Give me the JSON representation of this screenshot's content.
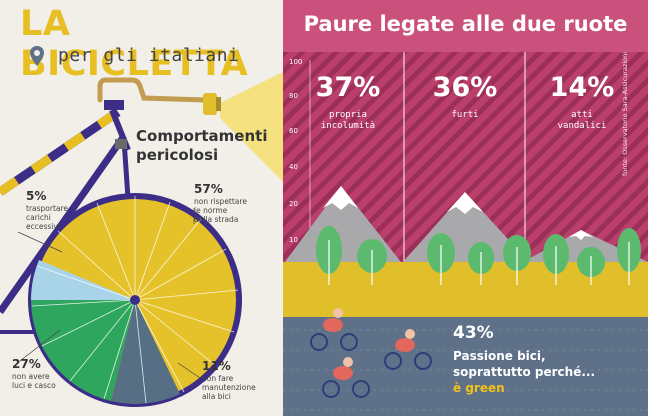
{
  "left": {
    "title": "LA BICICLETTA",
    "subtitle": "per gli italiani",
    "behaviours_title_line1": "Comportamenti",
    "behaviours_title_line2": "pericolosi",
    "segments": [
      {
        "pct": "5%",
        "label_lines": [
          "trasportare",
          "carichi",
          "eccessivi"
        ],
        "value": 5,
        "color": "#a9d3e8"
      },
      {
        "pct": "57%",
        "label_lines": [
          "non rispettare",
          "le norme",
          "della strada"
        ],
        "value": 57,
        "color": "#e5c22a"
      },
      {
        "pct": "11%",
        "label_lines": [
          "non fare",
          "manutenzione",
          "alla bici"
        ],
        "value": 11,
        "color": "#566f84"
      },
      {
        "pct": "27%",
        "label_lines": [
          "non avere",
          "luci e casco"
        ],
        "value": 27,
        "color": "#2fa65e"
      }
    ],
    "colors": {
      "yellow": "#e8bf22",
      "frame": "#3c2d86",
      "green": "#2fa65e",
      "slate": "#566f84",
      "lightblue": "#a9d3e8"
    }
  },
  "right": {
    "title": "Paure legate alle due ruote",
    "y_ticks": [
      "100",
      "80",
      "60",
      "40",
      "20",
      "10"
    ],
    "fears": [
      {
        "pct": "37%",
        "label_lines": [
          "propria",
          "incolumità"
        ],
        "value": 37
      },
      {
        "pct": "36%",
        "label_lines": [
          "furti"
        ],
        "value": 36
      },
      {
        "pct": "14%",
        "label_lines": [
          "atti",
          "vandalici"
        ],
        "value": 14
      }
    ],
    "source": "fonte: Osservatorio Sara-Assicurazioni",
    "passion": {
      "pct": "43%",
      "line1": "Passione bici,",
      "line2": "soprattutto perché...",
      "line3": "è green"
    },
    "colors": {
      "pink": "#ba3f6b",
      "stripe": "#9b2f57",
      "mountain": "#a9a9ab",
      "snow": "#ffffff",
      "ground": "#e1bf2b",
      "water": "#5e7188",
      "tree": "#5cba6f"
    }
  }
}
